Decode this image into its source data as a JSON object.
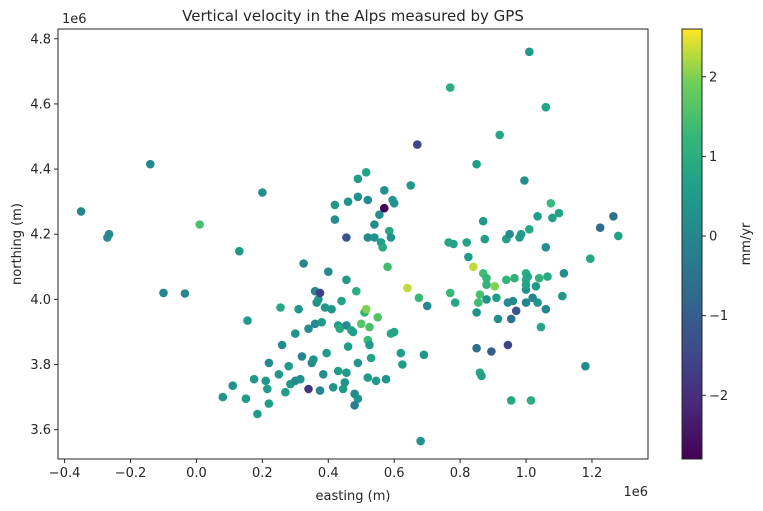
{
  "chart_data": {
    "type": "scatter",
    "title": "Vertical velocity in the Alps measured by GPS",
    "xlabel": "easting (m)",
    "ylabel": "northing (m)",
    "x_offset_label": "1e6",
    "y_offset_label": "1e6",
    "xlim": [
      -0.42,
      1.37
    ],
    "ylim": [
      3.51,
      4.83
    ],
    "xticks": [
      -0.4,
      -0.2,
      0.0,
      0.2,
      0.4,
      0.6,
      0.8,
      1.0,
      1.2
    ],
    "xtick_labels": [
      "−0.4",
      "−0.2",
      "0.0",
      "0.2",
      "0.4",
      "0.6",
      "0.8",
      "1.0",
      "1.2"
    ],
    "yticks": [
      3.6,
      3.8,
      4.0,
      4.2,
      4.4,
      4.6,
      4.8
    ],
    "ytick_labels": [
      "3.6",
      "3.8",
      "4.0",
      "4.2",
      "4.4",
      "4.6",
      "4.8"
    ],
    "colorbar": {
      "label": "mm/yr",
      "colormap": "viridis",
      "range": [
        -2.8,
        2.6
      ],
      "ticks": [
        -2,
        -1,
        0,
        1,
        2
      ],
      "tick_labels": [
        "−2",
        "−1",
        "0",
        "1",
        "2"
      ]
    },
    "grid": false,
    "points": [
      [
        -0.35,
        4.27,
        0.0
      ],
      [
        -0.27,
        4.19,
        0.1
      ],
      [
        -0.265,
        4.2,
        0.1
      ],
      [
        -0.14,
        4.415,
        0.1
      ],
      [
        -0.1,
        4.02,
        0.0
      ],
      [
        -0.035,
        4.018,
        0.0
      ],
      [
        0.01,
        4.23,
        1.5
      ],
      [
        0.13,
        4.148,
        0.4
      ],
      [
        0.2,
        4.328,
        0.2
      ],
      [
        0.155,
        3.935,
        0.5
      ],
      [
        0.08,
        3.7,
        0.4
      ],
      [
        0.11,
        3.735,
        0.3
      ],
      [
        0.15,
        3.695,
        0.5
      ],
      [
        0.175,
        3.755,
        0.4
      ],
      [
        0.185,
        3.648,
        0.5
      ],
      [
        0.21,
        3.75,
        0.4
      ],
      [
        0.215,
        3.725,
        0.5
      ],
      [
        0.22,
        3.68,
        0.6
      ],
      [
        0.22,
        3.805,
        0.1
      ],
      [
        0.255,
        3.975,
        0.8
      ],
      [
        0.25,
        3.77,
        0.4
      ],
      [
        0.26,
        3.86,
        0.1
      ],
      [
        0.27,
        3.715,
        0.6
      ],
      [
        0.28,
        3.795,
        0.5
      ],
      [
        0.285,
        3.74,
        0.5
      ],
      [
        0.3,
        3.895,
        0.3
      ],
      [
        0.3,
        3.75,
        0.1
      ],
      [
        0.31,
        3.97,
        0.4
      ],
      [
        0.315,
        3.755,
        0.3
      ],
      [
        0.32,
        3.825,
        0.0
      ],
      [
        0.325,
        4.11,
        0.0
      ],
      [
        0.34,
        3.725,
        -1.8
      ],
      [
        0.34,
        3.91,
        0.2
      ],
      [
        0.35,
        3.805,
        0.1
      ],
      [
        0.355,
        3.815,
        0.3
      ],
      [
        0.36,
        4.025,
        0.0
      ],
      [
        0.36,
        3.925,
        0.1
      ],
      [
        0.365,
        3.99,
        0.3
      ],
      [
        0.37,
        4.0,
        0.4
      ],
      [
        0.375,
        4.02,
        -1.6
      ],
      [
        0.375,
        3.72,
        0.0
      ],
      [
        0.38,
        3.93,
        0.5
      ],
      [
        0.385,
        3.77,
        0.2
      ],
      [
        0.39,
        3.975,
        0.4
      ],
      [
        0.395,
        3.835,
        0.5
      ],
      [
        0.4,
        4.085,
        0.1
      ],
      [
        0.41,
        3.97,
        0.4
      ],
      [
        0.415,
        3.73,
        0.3
      ],
      [
        0.42,
        4.29,
        0.4
      ],
      [
        0.42,
        4.245,
        0.2
      ],
      [
        0.43,
        3.92,
        0.5
      ],
      [
        0.43,
        3.78,
        0.6
      ],
      [
        0.435,
        3.91,
        0.9
      ],
      [
        0.44,
        3.995,
        0.7
      ],
      [
        0.445,
        3.725,
        0.5
      ],
      [
        0.45,
        3.745,
        0.3
      ],
      [
        0.455,
        3.775,
        0.5
      ],
      [
        0.455,
        4.06,
        0.5
      ],
      [
        0.455,
        3.92,
        0.1
      ],
      [
        0.455,
        4.19,
        -1.2
      ],
      [
        0.46,
        4.3,
        0.3
      ],
      [
        0.46,
        3.855,
        0.6
      ],
      [
        0.47,
        3.905,
        0.7
      ],
      [
        0.475,
        3.9,
        0.6
      ],
      [
        0.48,
        3.71,
        0.1
      ],
      [
        0.48,
        3.675,
        -0.2
      ],
      [
        0.485,
        4.025,
        1.0
      ],
      [
        0.49,
        3.805,
        0.4
      ],
      [
        0.49,
        4.315,
        0.3
      ],
      [
        0.49,
        4.37,
        0.6
      ],
      [
        0.49,
        3.695,
        0.3
      ],
      [
        0.5,
        3.925,
        1.6
      ],
      [
        0.51,
        3.96,
        1.1
      ],
      [
        0.515,
        3.97,
        2.0
      ],
      [
        0.515,
        4.39,
        0.7
      ],
      [
        0.52,
        4.19,
        0.1
      ],
      [
        0.52,
        3.875,
        1.3
      ],
      [
        0.52,
        4.305,
        0.1
      ],
      [
        0.52,
        3.76,
        0.5
      ],
      [
        0.525,
        3.915,
        1.5
      ],
      [
        0.525,
        3.86,
        0.5
      ],
      [
        0.53,
        3.82,
        0.7
      ],
      [
        0.54,
        4.19,
        0.3
      ],
      [
        0.54,
        4.23,
        0.2
      ],
      [
        0.545,
        3.75,
        0.5
      ],
      [
        0.55,
        3.945,
        1.6
      ],
      [
        0.555,
        4.26,
        0.2
      ],
      [
        0.56,
        4.175,
        0.6
      ],
      [
        0.565,
        4.16,
        0.8
      ],
      [
        0.57,
        4.28,
        -2.8
      ],
      [
        0.57,
        4.335,
        0.2
      ],
      [
        0.575,
        3.755,
        0.3
      ],
      [
        0.58,
        4.1,
        1.4
      ],
      [
        0.585,
        4.21,
        0.8
      ],
      [
        0.59,
        4.19,
        0.3
      ],
      [
        0.59,
        3.895,
        0.8
      ],
      [
        0.595,
        4.305,
        0.4
      ],
      [
        0.6,
        4.295,
        0.3
      ],
      [
        0.6,
        3.9,
        0.7
      ],
      [
        0.62,
        3.835,
        0.6
      ],
      [
        0.625,
        3.8,
        0.5
      ],
      [
        0.64,
        4.035,
        2.3
      ],
      [
        0.65,
        4.35,
        0.5
      ],
      [
        0.67,
        4.475,
        -1.5
      ],
      [
        0.675,
        4.005,
        1.3
      ],
      [
        0.68,
        3.565,
        0.3
      ],
      [
        0.69,
        3.83,
        0.4
      ],
      [
        0.7,
        3.98,
        0.1
      ],
      [
        0.765,
        4.175,
        0.8
      ],
      [
        0.77,
        4.02,
        1.3
      ],
      [
        0.77,
        4.65,
        1.0
      ],
      [
        0.78,
        4.17,
        0.7
      ],
      [
        0.785,
        3.99,
        0.8
      ],
      [
        0.82,
        4.175,
        0.7
      ],
      [
        0.825,
        4.13,
        0.5
      ],
      [
        0.84,
        4.1,
        2.3
      ],
      [
        0.85,
        3.96,
        0.3
      ],
      [
        0.85,
        4.415,
        0.6
      ],
      [
        0.85,
        3.85,
        -0.6
      ],
      [
        0.855,
        3.99,
        1.4
      ],
      [
        0.86,
        4.015,
        1.5
      ],
      [
        0.86,
        3.775,
        0.8
      ],
      [
        0.865,
        3.765,
        0.7
      ],
      [
        0.87,
        4.24,
        0.4
      ],
      [
        0.87,
        4.08,
        1.4
      ],
      [
        0.875,
        4.185,
        0.6
      ],
      [
        0.88,
        4.065,
        1.2
      ],
      [
        0.88,
        4.045,
        1.1
      ],
      [
        0.88,
        4.0,
        0.3
      ],
      [
        0.895,
        3.84,
        -1.0
      ],
      [
        0.905,
        4.04,
        2.0
      ],
      [
        0.91,
        4.005,
        0.6
      ],
      [
        0.915,
        3.94,
        0.2
      ],
      [
        0.92,
        4.505,
        0.8
      ],
      [
        0.94,
        4.06,
        1.2
      ],
      [
        0.94,
        4.185,
        0.6
      ],
      [
        0.945,
        3.99,
        0.1
      ],
      [
        0.945,
        3.86,
        -1.6
      ],
      [
        0.95,
        4.2,
        0.1
      ],
      [
        0.955,
        3.94,
        -0.5
      ],
      [
        0.955,
        3.69,
        0.8
      ],
      [
        0.96,
        3.995,
        0.1
      ],
      [
        0.965,
        4.065,
        1.1
      ],
      [
        0.97,
        3.965,
        -1.2
      ],
      [
        0.98,
        4.19,
        0.5
      ],
      [
        0.985,
        4.2,
        0.5
      ],
      [
        0.995,
        4.365,
        0.2
      ],
      [
        1.0,
        4.08,
        1.0
      ],
      [
        1.0,
        4.06,
        0.9
      ],
      [
        1.0,
        4.03,
        0.3
      ],
      [
        1.0,
        3.99,
        0.0
      ],
      [
        1.0,
        4.045,
        0.7
      ],
      [
        1.005,
        4.07,
        0.8
      ],
      [
        1.01,
        4.76,
        0.4
      ],
      [
        1.01,
        4.215,
        0.8
      ],
      [
        1.015,
        3.69,
        1.0
      ],
      [
        1.02,
        4.005,
        0.0
      ],
      [
        1.03,
        4.04,
        0.5
      ],
      [
        1.035,
        3.99,
        0.3
      ],
      [
        1.035,
        4.255,
        0.6
      ],
      [
        1.04,
        4.065,
        1.1
      ],
      [
        1.045,
        3.915,
        0.8
      ],
      [
        1.06,
        3.97,
        0.0
      ],
      [
        1.06,
        4.16,
        0.2
      ],
      [
        1.06,
        4.59,
        0.7
      ],
      [
        1.065,
        4.07,
        0.9
      ],
      [
        1.075,
        4.295,
        1.3
      ],
      [
        1.08,
        4.25,
        0.6
      ],
      [
        1.1,
        4.265,
        0.7
      ],
      [
        1.11,
        4.01,
        0.4
      ],
      [
        1.115,
        4.08,
        0.2
      ],
      [
        1.18,
        3.795,
        0.1
      ],
      [
        1.195,
        4.125,
        0.8
      ],
      [
        1.225,
        4.22,
        -0.7
      ],
      [
        1.265,
        4.255,
        -0.5
      ],
      [
        1.28,
        4.195,
        0.7
      ]
    ]
  }
}
